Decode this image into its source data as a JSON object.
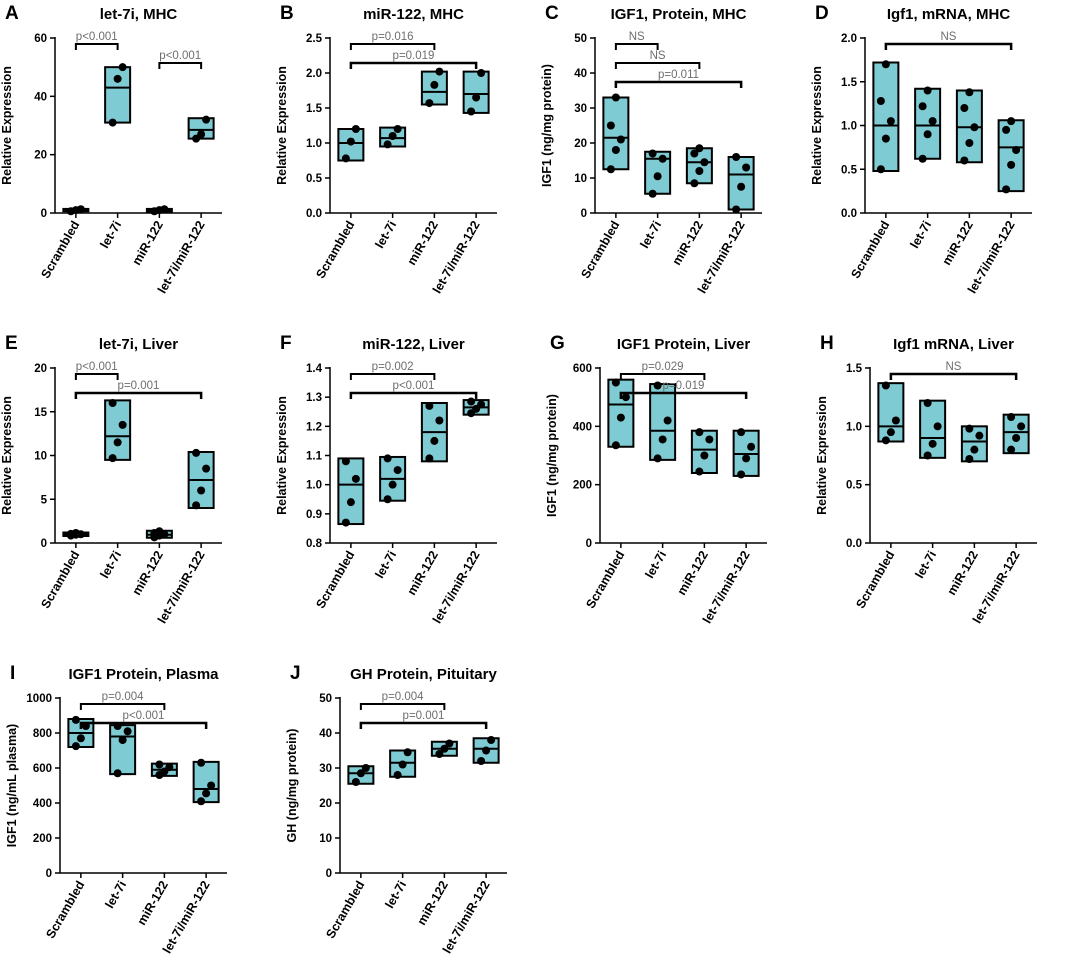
{
  "chart_data": [
    {
      "panel": "A",
      "title": "let-7i, MHC",
      "type": "box",
      "ylabel": "Relative Expression",
      "ylim": [
        0,
        60
      ],
      "ticks": [
        0,
        20,
        40,
        60
      ],
      "categories": [
        "Scrambled",
        "let-7i",
        "miR-122",
        "let-7i/miR-122"
      ],
      "groups": [
        {
          "min": 0.6,
          "median": 1.0,
          "max": 1.4,
          "points": [
            0.6,
            1.0,
            1.3
          ]
        },
        {
          "min": 31,
          "median": 43,
          "max": 50,
          "points": [
            31,
            46,
            50
          ]
        },
        {
          "min": 0.5,
          "median": 1.0,
          "max": 1.4,
          "points": [
            0.6,
            1.0,
            1.3
          ]
        },
        {
          "min": 25.5,
          "median": 28.5,
          "max": 32.5,
          "points": [
            25.5,
            27,
            32
          ]
        }
      ],
      "annotations": [
        {
          "label": "p<0.001",
          "from": 0,
          "to": 1,
          "color": "grey"
        },
        {
          "label": "p<0.001",
          "from": 2,
          "to": 3,
          "color": "grey"
        }
      ]
    },
    {
      "panel": "B",
      "title": "miR-122, MHC",
      "type": "box",
      "ylabel": "Relative Expression",
      "ylim": [
        0,
        2.5
      ],
      "ticks": [
        0.0,
        0.5,
        1.0,
        1.5,
        2.0,
        2.5
      ],
      "categories": [
        "Scrambled",
        "let-7i",
        "miR-122",
        "let-7i/miR-122"
      ],
      "groups": [
        {
          "min": 0.75,
          "median": 1.0,
          "max": 1.2,
          "points": [
            0.78,
            1.02,
            1.2
          ]
        },
        {
          "min": 0.95,
          "median": 1.07,
          "max": 1.22,
          "points": [
            0.98,
            1.1,
            1.2
          ]
        },
        {
          "min": 1.55,
          "median": 1.73,
          "max": 2.02,
          "points": [
            1.57,
            1.83,
            2.02
          ]
        },
        {
          "min": 1.43,
          "median": 1.7,
          "max": 2.02,
          "points": [
            1.45,
            1.65,
            2.0
          ]
        }
      ],
      "annotations": [
        {
          "label": "p=0.016",
          "from": 0,
          "to": 2,
          "color": "black"
        },
        {
          "label": "p=0.019",
          "from": 0,
          "to": 3,
          "color": "black"
        }
      ]
    },
    {
      "panel": "C",
      "title": "IGF1, Protein, MHC",
      "type": "box",
      "ylabel": "IGF1 (ng/mg protein)",
      "ylim": [
        0,
        50
      ],
      "ticks": [
        0,
        10,
        20,
        30,
        40,
        50
      ],
      "categories": [
        "Scrambled",
        "let-7i",
        "miR-122",
        "let-7i/miR-122"
      ],
      "groups": [
        {
          "min": 12.5,
          "median": 21.5,
          "max": 33,
          "points": [
            12.5,
            18,
            21,
            25,
            33
          ]
        },
        {
          "min": 5.5,
          "median": 15.5,
          "max": 17.5,
          "points": [
            5.5,
            10.5,
            15.5,
            17
          ]
        },
        {
          "min": 8.5,
          "median": 14.5,
          "max": 18.5,
          "points": [
            8.5,
            12,
            14.5,
            17,
            18.5
          ]
        },
        {
          "min": 1,
          "median": 11,
          "max": 16,
          "points": [
            1,
            7.5,
            13,
            16
          ]
        }
      ],
      "annotations": [
        {
          "label": "NS",
          "from": 0,
          "to": 1,
          "color": "black"
        },
        {
          "label": "NS",
          "from": 0,
          "to": 2,
          "color": "black"
        },
        {
          "label": "p=0.011",
          "from": 0,
          "to": 3,
          "color": "black"
        }
      ]
    },
    {
      "panel": "D",
      "title": "Igf1, mRNA, MHC",
      "type": "box",
      "ylabel": "Relative Expression",
      "ylim": [
        0,
        2.0
      ],
      "ticks": [
        0.0,
        0.5,
        1.0,
        1.5,
        2.0
      ],
      "categories": [
        "Scrambled",
        "let-7i",
        "miR-122",
        "let-7i/miR-122"
      ],
      "groups": [
        {
          "min": 0.48,
          "median": 1.0,
          "max": 1.72,
          "points": [
            0.5,
            0.85,
            1.05,
            1.28,
            1.7
          ]
        },
        {
          "min": 0.62,
          "median": 1.0,
          "max": 1.42,
          "points": [
            0.62,
            0.9,
            1.05,
            1.22,
            1.4
          ]
        },
        {
          "min": 0.58,
          "median": 0.98,
          "max": 1.4,
          "points": [
            0.6,
            0.8,
            0.98,
            1.2,
            1.38
          ]
        },
        {
          "min": 0.25,
          "median": 0.75,
          "max": 1.06,
          "points": [
            0.27,
            0.55,
            0.72,
            0.95,
            1.05
          ]
        }
      ],
      "annotations": [
        {
          "label": "NS",
          "from": 0,
          "to": 3,
          "color": "black"
        }
      ]
    },
    {
      "panel": "E",
      "title": "let-7i, Liver",
      "type": "box",
      "ylabel": "Relative Expression",
      "ylim": [
        0,
        20
      ],
      "ticks": [
        0,
        5,
        10,
        15,
        20
      ],
      "categories": [
        "Scrambled",
        "let-7i",
        "miR-122",
        "let-7i/miR-122"
      ],
      "groups": [
        {
          "min": 0.8,
          "median": 1.0,
          "max": 1.2,
          "points": [
            0.85,
            0.95,
            1.0,
            1.05,
            1.15
          ]
        },
        {
          "min": 9.5,
          "median": 12.2,
          "max": 16.3,
          "points": [
            9.7,
            11.5,
            13.5,
            16
          ]
        },
        {
          "min": 0.6,
          "median": 0.95,
          "max": 1.4,
          "points": [
            0.65,
            0.85,
            1.0,
            1.15,
            1.35
          ]
        },
        {
          "min": 4.0,
          "median": 7.2,
          "max": 10.4,
          "points": [
            4.3,
            6.0,
            8.5,
            10.3
          ]
        }
      ],
      "annotations": [
        {
          "label": "p<0.001",
          "from": 0,
          "to": 1,
          "color": "grey"
        },
        {
          "label": "p=0.001",
          "from": 0,
          "to": 3,
          "color": "grey"
        }
      ]
    },
    {
      "panel": "F",
      "title": "miR-122, Liver",
      "type": "box",
      "ylabel": "Relative Expression",
      "ylim": [
        0.8,
        1.4
      ],
      "ticks": [
        0.8,
        0.9,
        1.0,
        1.1,
        1.2,
        1.3,
        1.4
      ],
      "categories": [
        "Scrambled",
        "let-7i",
        "miR-122",
        "let-7i/miR-122"
      ],
      "groups": [
        {
          "min": 0.865,
          "median": 1.0,
          "max": 1.09,
          "points": [
            0.87,
            0.94,
            1.02,
            1.08
          ]
        },
        {
          "min": 0.945,
          "median": 1.02,
          "max": 1.095,
          "points": [
            0.95,
            1.0,
            1.05,
            1.09
          ]
        },
        {
          "min": 1.08,
          "median": 1.18,
          "max": 1.28,
          "points": [
            1.09,
            1.15,
            1.22,
            1.27
          ]
        },
        {
          "min": 1.24,
          "median": 1.265,
          "max": 1.29,
          "points": [
            1.245,
            1.26,
            1.275,
            1.285
          ]
        }
      ],
      "annotations": [
        {
          "label": "p=0.002",
          "from": 0,
          "to": 2,
          "color": "black"
        },
        {
          "label": "p<0.001",
          "from": 0,
          "to": 3,
          "color": "black"
        }
      ]
    },
    {
      "panel": "G",
      "title": "IGF1 Protein, Liver",
      "type": "box",
      "ylabel": "IGF1 (ng/mg protein)",
      "ylim": [
        0,
        600
      ],
      "ticks": [
        0,
        200,
        400,
        600
      ],
      "categories": [
        "Scrambled",
        "let-7i",
        "miR-122",
        "let-7i/miR-122"
      ],
      "groups": [
        {
          "min": 330,
          "median": 475,
          "max": 560,
          "points": [
            335,
            430,
            500,
            550
          ]
        },
        {
          "min": 285,
          "median": 385,
          "max": 545,
          "points": [
            290,
            355,
            420,
            540
          ]
        },
        {
          "min": 240,
          "median": 320,
          "max": 385,
          "points": [
            245,
            300,
            355,
            380
          ]
        },
        {
          "min": 230,
          "median": 305,
          "max": 385,
          "points": [
            235,
            290,
            330,
            380
          ]
        }
      ],
      "annotations": [
        {
          "label": "p=0.029",
          "from": 0,
          "to": 2,
          "color": "grey"
        },
        {
          "label": "p=0.019",
          "from": 0,
          "to": 3,
          "color": "grey"
        }
      ]
    },
    {
      "panel": "H",
      "title": "Igf1 mRNA, Liver",
      "type": "box",
      "ylabel": "Relative Expression",
      "ylim": [
        0,
        1.5
      ],
      "ticks": [
        0.0,
        0.5,
        1.0,
        1.5
      ],
      "categories": [
        "Scrambled",
        "let-7i",
        "miR-122",
        "let-7i/miR-122"
      ],
      "groups": [
        {
          "min": 0.87,
          "median": 1.0,
          "max": 1.37,
          "points": [
            0.88,
            0.95,
            1.05,
            1.35
          ]
        },
        {
          "min": 0.73,
          "median": 0.9,
          "max": 1.22,
          "points": [
            0.75,
            0.85,
            1.0,
            1.2
          ]
        },
        {
          "min": 0.7,
          "median": 0.87,
          "max": 1.0,
          "points": [
            0.72,
            0.8,
            0.92,
            0.98
          ]
        },
        {
          "min": 0.77,
          "median": 0.95,
          "max": 1.1,
          "points": [
            0.8,
            0.9,
            1.0,
            1.08
          ]
        }
      ],
      "annotations": [
        {
          "label": "NS",
          "from": 0,
          "to": 3,
          "color": "black"
        }
      ]
    },
    {
      "panel": "I",
      "title": "IGF1 Protein, Plasma",
      "type": "box",
      "ylabel": "IGF1 (ng/mL plasma)",
      "ylim": [
        0,
        1000
      ],
      "ticks": [
        0,
        200,
        400,
        600,
        800,
        1000
      ],
      "categories": [
        "Scrambled",
        "let-7i",
        "miR-122",
        "let-7i/miR-122"
      ],
      "groups": [
        {
          "min": 720,
          "median": 800,
          "max": 880,
          "points": [
            725,
            770,
            840,
            875
          ]
        },
        {
          "min": 565,
          "median": 780,
          "max": 845,
          "points": [
            570,
            760,
            810,
            840
          ]
        },
        {
          "min": 555,
          "median": 590,
          "max": 625,
          "points": [
            560,
            580,
            605,
            620
          ]
        },
        {
          "min": 405,
          "median": 480,
          "max": 635,
          "points": [
            410,
            455,
            500,
            630
          ]
        }
      ],
      "annotations": [
        {
          "label": "p=0.004",
          "from": 0,
          "to": 2,
          "color": "grey"
        },
        {
          "label": "p<0.001",
          "from": 0,
          "to": 3,
          "color": "grey"
        }
      ]
    },
    {
      "panel": "J",
      "title": "GH Protein, Pituitary",
      "type": "box",
      "ylabel": "GH (ng/mg protein)",
      "ylim": [
        0,
        50
      ],
      "ticks": [
        0,
        10,
        20,
        30,
        40,
        50
      ],
      "categories": [
        "Scrambled",
        "let-7i",
        "miR-122",
        "let-7i/miR-122"
      ],
      "groups": [
        {
          "min": 25.5,
          "median": 28.5,
          "max": 30.5,
          "points": [
            26,
            28.5,
            30
          ]
        },
        {
          "min": 27.5,
          "median": 31.5,
          "max": 35,
          "points": [
            28,
            31,
            34.5
          ]
        },
        {
          "min": 33.5,
          "median": 35.5,
          "max": 37.5,
          "points": [
            34,
            35.5,
            37
          ]
        },
        {
          "min": 31.5,
          "median": 35.5,
          "max": 38.5,
          "points": [
            32,
            35,
            38
          ]
        }
      ],
      "annotations": [
        {
          "label": "p=0.004",
          "from": 0,
          "to": 2,
          "color": "black"
        },
        {
          "label": "p=0.001",
          "from": 0,
          "to": 3,
          "color": "black"
        }
      ]
    }
  ],
  "colors": {
    "box_fill": "#7fcbd3",
    "line": "#000000",
    "annotation_grey": "#6e6e6e"
  }
}
